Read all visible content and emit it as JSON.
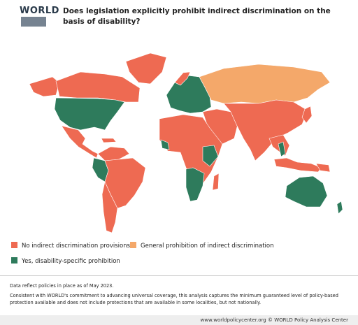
{
  "header": {
    "logo": "WORLD",
    "title": "Does legislation explicitly prohibit indirect discrimination on the basis of disability?"
  },
  "legend": [
    {
      "label": "No indirect discrimination provisions",
      "color": "#ee6a52"
    },
    {
      "label": "General prohibition of indirect discrimination",
      "color": "#f4a86a"
    },
    {
      "label": "Yes, disability-specific prohibition",
      "color": "#2e7b5c"
    }
  ],
  "notes": [
    "Data reflect policies in place as of May 2023.",
    "Consistent with WORLD's commitment to advancing universal coverage, this analysis captures the minimum guaranteed level of policy-based protection available and does not include protections that are available in some localities, but not nationally."
  ],
  "footer": "www.worldpolicycenter.org © WORLD Policy Analysis Center"
}
